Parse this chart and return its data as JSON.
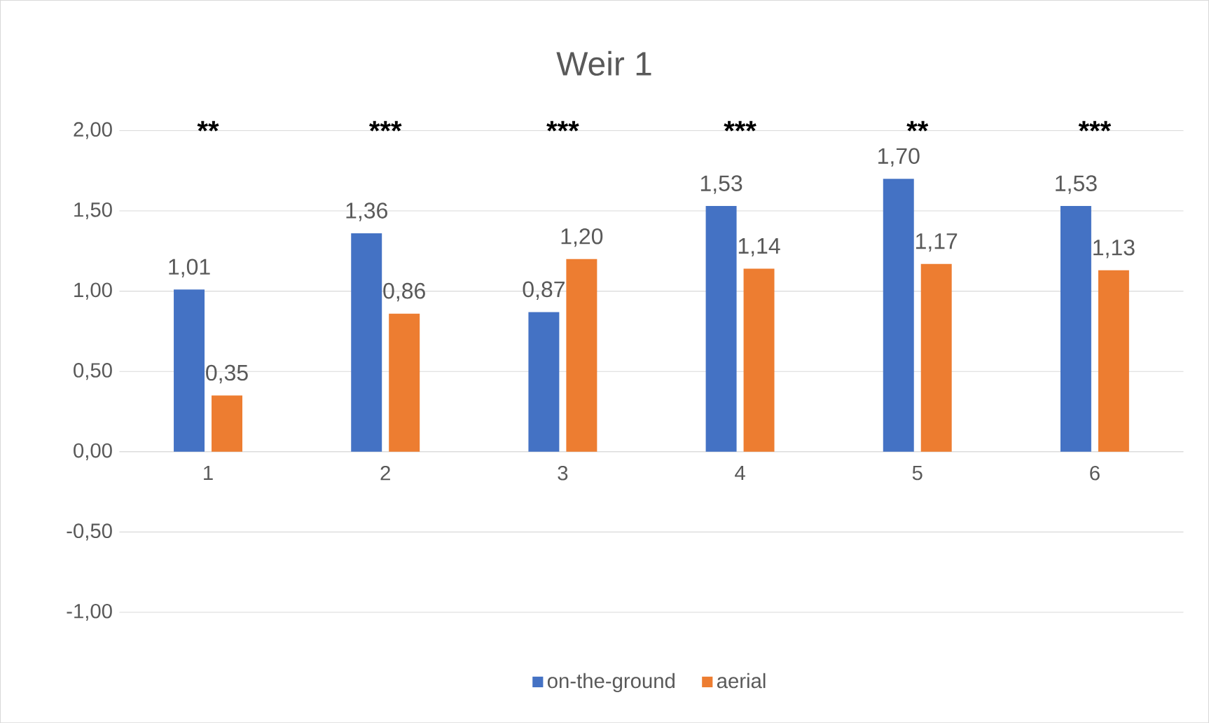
{
  "chart_data": {
    "type": "bar",
    "title": "Weir 1",
    "categories": [
      "1",
      "2",
      "3",
      "4",
      "5",
      "6"
    ],
    "series": [
      {
        "name": "on-the-ground",
        "color": "#4472c4",
        "values": [
          1.01,
          1.36,
          0.87,
          1.53,
          1.7,
          1.53
        ],
        "value_labels": [
          "1,01",
          "1,36",
          "0,87",
          "1,53",
          "1,70",
          "1,53"
        ]
      },
      {
        "name": "aerial",
        "color": "#ed7d31",
        "values": [
          0.35,
          0.86,
          1.2,
          1.14,
          1.17,
          1.13
        ],
        "value_labels": [
          "0,35",
          "0,86",
          "1,20",
          "1,14",
          "1,17",
          "1,13"
        ]
      }
    ],
    "ylim": [
      -1,
      2
    ],
    "yticks": [
      {
        "value": -1,
        "label": "-1,00"
      },
      {
        "value": -0.5,
        "label": "-0,50"
      },
      {
        "value": 0,
        "label": "0,00"
      },
      {
        "value": 0.5,
        "label": "0,50"
      },
      {
        "value": 1,
        "label": "1,00"
      },
      {
        "value": 1.5,
        "label": "1,50"
      },
      {
        "value": 2,
        "label": "2,00"
      }
    ],
    "annotations": [
      "**",
      "***",
      "***",
      "***",
      "**",
      "***"
    ],
    "grid": "y",
    "legend": "bottom"
  }
}
